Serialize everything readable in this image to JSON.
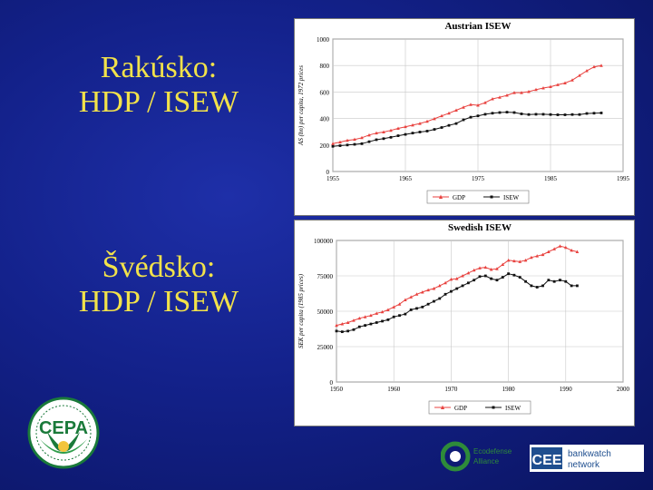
{
  "slide": {
    "austria_label": [
      "Rakúsko:",
      "HDP / ISEW"
    ],
    "sweden_label": [
      "Švédsko:",
      "HDP / ISEW"
    ]
  },
  "chart_data": [
    {
      "type": "line",
      "title": "Austrian ISEW",
      "ylabel": "AS (bn) per capita, 1972 prices",
      "xlabel": "",
      "xlim": [
        1955,
        1995
      ],
      "ylim": [
        0,
        1000
      ],
      "x_ticks": [
        1955,
        1965,
        1975,
        1985,
        1995
      ],
      "y_ticks": [
        0,
        200,
        400,
        600,
        800,
        1000
      ],
      "grid": true,
      "legend": "bottom",
      "series": [
        {
          "name": "GDP",
          "color": "#e8423f",
          "marker": "triangle",
          "x": [
            1955,
            1956,
            1957,
            1958,
            1959,
            1960,
            1961,
            1962,
            1963,
            1964,
            1965,
            1966,
            1967,
            1968,
            1969,
            1970,
            1971,
            1972,
            1973,
            1974,
            1975,
            1976,
            1977,
            1978,
            1979,
            1980,
            1981,
            1982,
            1983,
            1984,
            1985,
            1986,
            1987,
            1988,
            1989,
            1990,
            1991,
            1992
          ],
          "y": [
            210,
            222,
            235,
            242,
            255,
            275,
            290,
            298,
            310,
            325,
            338,
            350,
            362,
            378,
            398,
            420,
            440,
            462,
            485,
            505,
            500,
            520,
            548,
            560,
            575,
            595,
            595,
            603,
            618,
            630,
            640,
            655,
            668,
            690,
            725,
            760,
            790,
            800
          ]
        },
        {
          "name": "ISEW",
          "color": "#111111",
          "marker": "square",
          "x": [
            1955,
            1956,
            1957,
            1958,
            1959,
            1960,
            1961,
            1962,
            1963,
            1964,
            1965,
            1966,
            1967,
            1968,
            1969,
            1970,
            1971,
            1972,
            1973,
            1974,
            1975,
            1976,
            1977,
            1978,
            1979,
            1980,
            1981,
            1982,
            1983,
            1984,
            1985,
            1986,
            1987,
            1988,
            1989,
            1990,
            1991,
            1992
          ],
          "y": [
            190,
            195,
            200,
            205,
            210,
            225,
            240,
            248,
            258,
            270,
            280,
            290,
            298,
            305,
            318,
            332,
            348,
            362,
            390,
            410,
            420,
            432,
            440,
            445,
            448,
            445,
            435,
            430,
            432,
            432,
            430,
            428,
            428,
            430,
            430,
            438,
            440,
            442
          ]
        }
      ]
    },
    {
      "type": "line",
      "title": "Swedish ISEW",
      "ylabel": "SEK per capita (1985 prices)",
      "xlabel": "",
      "xlim": [
        1950,
        2000
      ],
      "ylim": [
        0,
        100000
      ],
      "x_ticks": [
        1950,
        1960,
        1970,
        1980,
        1990,
        2000
      ],
      "y_ticks": [
        0,
        25000,
        50000,
        75000,
        100000
      ],
      "grid": true,
      "legend": "bottom",
      "series": [
        {
          "name": "GDP",
          "color": "#e8423f",
          "marker": "triangle",
          "x": [
            1950,
            1951,
            1952,
            1953,
            1954,
            1955,
            1956,
            1957,
            1958,
            1959,
            1960,
            1961,
            1962,
            1963,
            1964,
            1965,
            1966,
            1967,
            1968,
            1969,
            1970,
            1971,
            1972,
            1973,
            1974,
            1975,
            1976,
            1977,
            1978,
            1979,
            1980,
            1981,
            1982,
            1983,
            1984,
            1985,
            1986,
            1987,
            1988,
            1989,
            1990,
            1991,
            1992
          ],
          "y": [
            40000,
            41000,
            42000,
            43500,
            45000,
            46000,
            47000,
            48500,
            49500,
            51000,
            53000,
            55000,
            58000,
            60000,
            62000,
            63500,
            65000,
            66000,
            68000,
            70000,
            72500,
            73000,
            75000,
            77000,
            79000,
            80500,
            81000,
            79500,
            80000,
            83000,
            86000,
            85500,
            85000,
            86000,
            88000,
            89000,
            90000,
            92000,
            94000,
            96000,
            95000,
            93000,
            92000
          ]
        },
        {
          "name": "ISEW",
          "color": "#111111",
          "marker": "square",
          "x": [
            1950,
            1951,
            1952,
            1953,
            1954,
            1955,
            1956,
            1957,
            1958,
            1959,
            1960,
            1961,
            1962,
            1963,
            1964,
            1965,
            1966,
            1967,
            1968,
            1969,
            1970,
            1971,
            1972,
            1973,
            1974,
            1975,
            1976,
            1977,
            1978,
            1979,
            1980,
            1981,
            1982,
            1983,
            1984,
            1985,
            1986,
            1987,
            1988,
            1989,
            1990,
            1991,
            1992
          ],
          "y": [
            36000,
            35500,
            36000,
            37000,
            39000,
            40000,
            41000,
            42000,
            43000,
            44000,
            46000,
            47000,
            48000,
            51000,
            52000,
            53000,
            55000,
            57000,
            59000,
            62000,
            64000,
            66000,
            68000,
            70000,
            72000,
            74500,
            75000,
            73000,
            72000,
            74000,
            76500,
            75500,
            74000,
            71000,
            68000,
            67000,
            68000,
            72000,
            71000,
            72000,
            71000,
            68000,
            68000
          ]
        }
      ]
    }
  ],
  "logos": {
    "cepa": {
      "name": "CEPA logo",
      "text": "CEPA",
      "colors": [
        "#1a7a3a",
        "#2f9d4b",
        "#f2c53d"
      ]
    },
    "ecodefense": {
      "name": "ecodefense logo",
      "text_lines": [
        "Ecodefense",
        "Alliance"
      ],
      "colors": [
        "#2e8b3a",
        "#ffffff"
      ]
    },
    "cee_bankwatch": {
      "name": "CEE Bankwatch Network logo",
      "mark": "CEE",
      "text_lines": [
        "bankwatch",
        "network"
      ],
      "colors": [
        "#1f4f8f",
        "#ffffff"
      ]
    }
  }
}
